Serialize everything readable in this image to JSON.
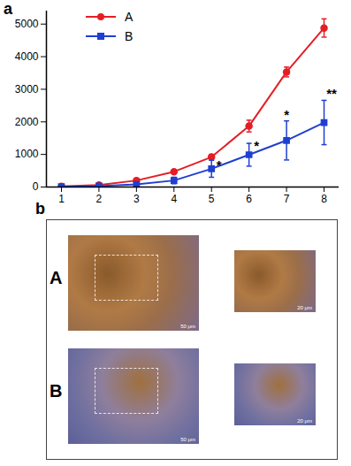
{
  "panel_labels": {
    "chart": "a",
    "micrographs": "b"
  },
  "chart_data": {
    "type": "line",
    "x": [
      1,
      2,
      3,
      4,
      5,
      6,
      7,
      8
    ],
    "series": [
      {
        "name": "A",
        "color": "#e41e26",
        "marker": "circle",
        "values": [
          20,
          60,
          200,
          470,
          920,
          1870,
          3530,
          4880
        ],
        "errors": [
          10,
          20,
          30,
          40,
          80,
          180,
          150,
          280
        ]
      },
      {
        "name": "B",
        "color": "#1f3fd1",
        "marker": "square",
        "values": [
          10,
          30,
          80,
          200,
          560,
          990,
          1430,
          1980
        ],
        "errors": [
          10,
          20,
          40,
          100,
          260,
          350,
          600,
          680
        ]
      }
    ],
    "xlim": [
      0.6,
      8.4
    ],
    "xticks": [
      1,
      2,
      3,
      4,
      5,
      6,
      7,
      8
    ],
    "ylim": [
      0,
      5400
    ],
    "yticks": [
      0,
      1000,
      2000,
      3000,
      4000,
      5000
    ],
    "legend": "top-left",
    "annotations": [
      {
        "x": 5.2,
        "y": 650,
        "text": "*"
      },
      {
        "x": 6.2,
        "y": 1250,
        "text": "*"
      },
      {
        "x": 7.0,
        "y": 2200,
        "text": "*"
      },
      {
        "x": 8.2,
        "y": 2850,
        "text": "**"
      }
    ]
  },
  "micrographs": {
    "rows": [
      {
        "label": "A",
        "scale_bars": [
          "50 μm",
          "20 μm"
        ]
      },
      {
        "label": "B",
        "scale_bars": [
          "50 μm",
          "20 μm"
        ]
      }
    ]
  }
}
